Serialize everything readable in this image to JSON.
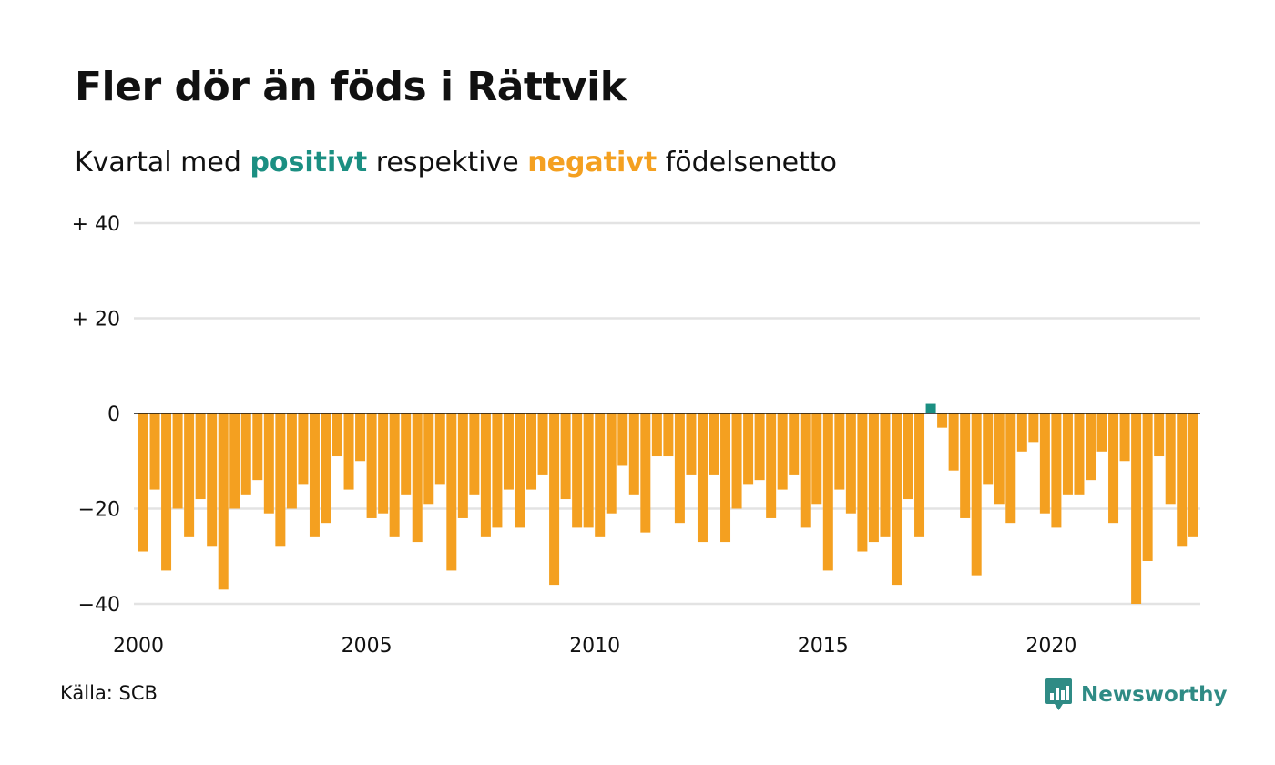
{
  "colors": {
    "positive": "#1b8f82",
    "negative": "#f4a020",
    "grid": "#e3e3e3",
    "axis": "#111111"
  },
  "subtitle": {
    "before": "Kvartal med",
    "positive_word": "positivt",
    "middle": "respektive",
    "negative_word": "negativt",
    "after": "födelsenetto"
  },
  "source": "Källa: SCB",
  "brand": {
    "name": "Newsworthy",
    "icon": "newsworthy-logo-icon"
  },
  "chart_data": {
    "type": "bar",
    "title": "Fler dör än föds i Rättvik",
    "xlabel": "",
    "ylabel": "",
    "ylim": [
      -40,
      40
    ],
    "yticks": [
      40,
      20,
      0,
      -20,
      -40
    ],
    "ytick_labels": [
      "+ 40",
      "+ 20",
      "0",
      "−20",
      "−40"
    ],
    "xticks": [
      2000,
      2005,
      2010,
      2015,
      2020
    ],
    "xtick_labels": [
      "2000",
      "2005",
      "2010",
      "2015",
      "2020"
    ],
    "x_start": 2000,
    "periods_per_year": 4,
    "grid": true,
    "series": [
      {
        "values": [
          -29,
          -16,
          -33,
          -20,
          -26,
          -18,
          -28,
          -37,
          -20,
          -17,
          -14,
          -21,
          -28,
          -20,
          -15,
          -26,
          -23,
          -9,
          -16,
          -10,
          -22,
          -21,
          -26,
          -17,
          -27,
          -19,
          -15,
          -33,
          -22,
          -17,
          -26,
          -24,
          -16,
          -24,
          -16,
          -13,
          -36,
          -18,
          -24,
          -24,
          -26,
          -21,
          -11,
          -17,
          -25,
          -9,
          -9,
          -23,
          -13,
          -27,
          -13,
          -27,
          -20,
          -15,
          -14,
          -22,
          -16,
          -13,
          -24,
          -19,
          -33,
          -16,
          -21,
          -29,
          -27,
          -26,
          -36,
          -18,
          -26,
          2,
          -3,
          -12,
          -22,
          -34,
          -15,
          -19,
          -23,
          -8,
          -6,
          -21,
          -24,
          -17,
          -17,
          -14,
          -8,
          -23,
          -10,
          -40,
          -31,
          -9,
          -19,
          -28,
          -26
        ]
      }
    ]
  }
}
